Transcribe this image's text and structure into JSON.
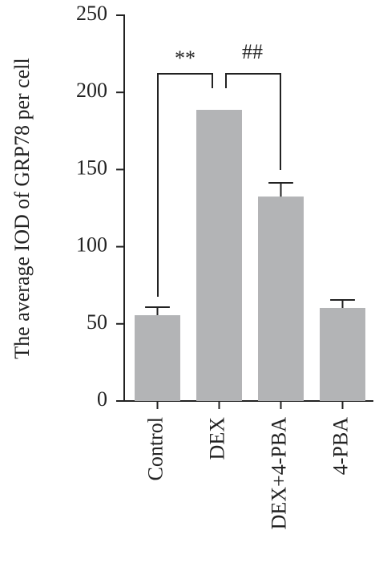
{
  "chart_data": {
    "type": "bar",
    "y_label": "The average IOD of GRP78 per cell",
    "categories": [
      "Control",
      "DEX",
      "DEX+4-PBA",
      "4-PBA"
    ],
    "values": [
      55.6,
      188.7,
      132.5,
      60.3
    ],
    "errors": [
      5.2,
      null,
      8.9,
      5.2
    ],
    "color": "#b3b4b6",
    "ylim": [
      0,
      250
    ],
    "yticks": [
      0,
      50,
      100,
      150,
      200,
      250
    ],
    "annotations": [
      "**",
      "##"
    ]
  }
}
